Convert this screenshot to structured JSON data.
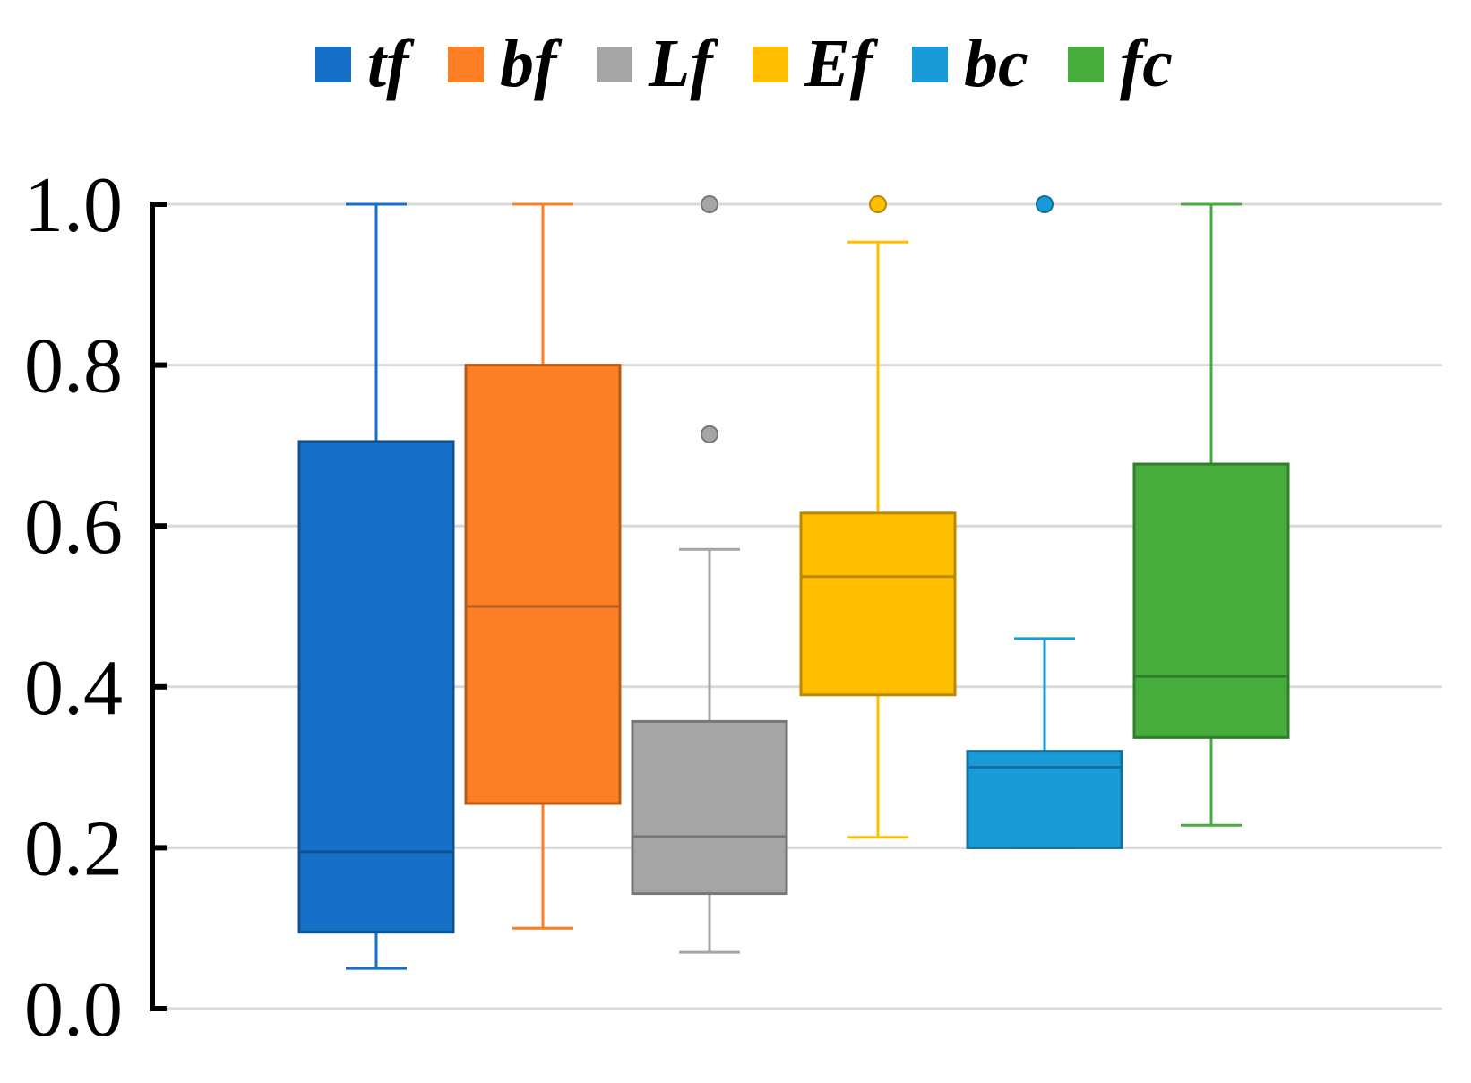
{
  "chart_data": {
    "type": "box",
    "title": "",
    "xlabel": "",
    "ylabel": "",
    "ylim": [
      0.0,
      1.0
    ],
    "y_ticks": [
      0.0,
      0.2,
      0.4,
      0.6,
      0.8,
      1.0
    ],
    "y_tick_labels": [
      "0.0",
      "0.2",
      "0.4",
      "0.6",
      "0.8",
      "1.0"
    ],
    "grid": true,
    "legend_position": "top",
    "series": [
      {
        "name": "tf",
        "color": "#1770c8",
        "min": 0.05,
        "q1": 0.095,
        "median": 0.195,
        "q3": 0.705,
        "max": 1.0,
        "outliers": []
      },
      {
        "name": "bf",
        "color": "#fc7f25",
        "min": 0.1,
        "q1": 0.255,
        "median": 0.5,
        "q3": 0.8,
        "max": 1.0,
        "outliers": []
      },
      {
        "name": "Lf",
        "color": "#a5a5a5",
        "min": 0.07,
        "q1": 0.143,
        "median": 0.214,
        "q3": 0.357,
        "max": 0.571,
        "outliers": [
          0.714,
          1.0
        ]
      },
      {
        "name": "Ef",
        "color": "#ffbf00",
        "min": 0.213,
        "q1": 0.39,
        "median": 0.537,
        "q3": 0.616,
        "max": 0.953,
        "outliers": [
          1.0
        ]
      },
      {
        "name": "bc",
        "color": "#199bd8",
        "min": 0.2,
        "q1": 0.2,
        "median": 0.3,
        "q3": 0.32,
        "max": 0.46,
        "outliers": [
          1.0
        ]
      },
      {
        "name": "fc",
        "color": "#46ad3c",
        "min": 0.228,
        "q1": 0.337,
        "median": 0.413,
        "q3": 0.677,
        "max": 1.0,
        "outliers": []
      }
    ]
  }
}
